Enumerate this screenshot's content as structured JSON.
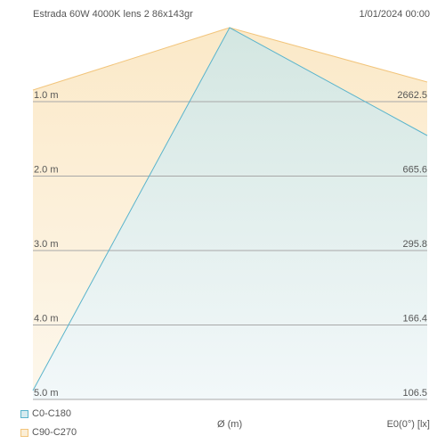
{
  "chart_data": {
    "type": "area",
    "title": "Estrada 60W 4000K lens 2 86x143gr",
    "timestamp": "1/01/2024 00:00",
    "xlabel": "Ø (m)",
    "ylabel": "E0(0°) [lx]",
    "distances": [
      {
        "label": "1.0 m",
        "value": 1.0,
        "illuminance": "2662.5"
      },
      {
        "label": "2.0 m",
        "value": 2.0,
        "illuminance": "665.6"
      },
      {
        "label": "3.0 m",
        "value": 3.0,
        "illuminance": "295.8"
      },
      {
        "label": "4.0 m",
        "value": 4.0,
        "illuminance": "166.4"
      },
      {
        "label": "5.0 m",
        "value": 5.0,
        "illuminance": "106.5"
      }
    ],
    "series": [
      {
        "name": "C0-C180",
        "color": "#5ab4cc",
        "left_at_5m": -5.0,
        "right_at_1m": 5.0
      },
      {
        "name": "C90-C270",
        "color": "#f2c57c",
        "left_at_1m": -5.0,
        "right_at_1m": 5.0
      }
    ],
    "colors": {
      "grid": "#a8a8a8",
      "c0_fill": "#d6ebef",
      "c90_fill": "#fbeed6"
    }
  }
}
